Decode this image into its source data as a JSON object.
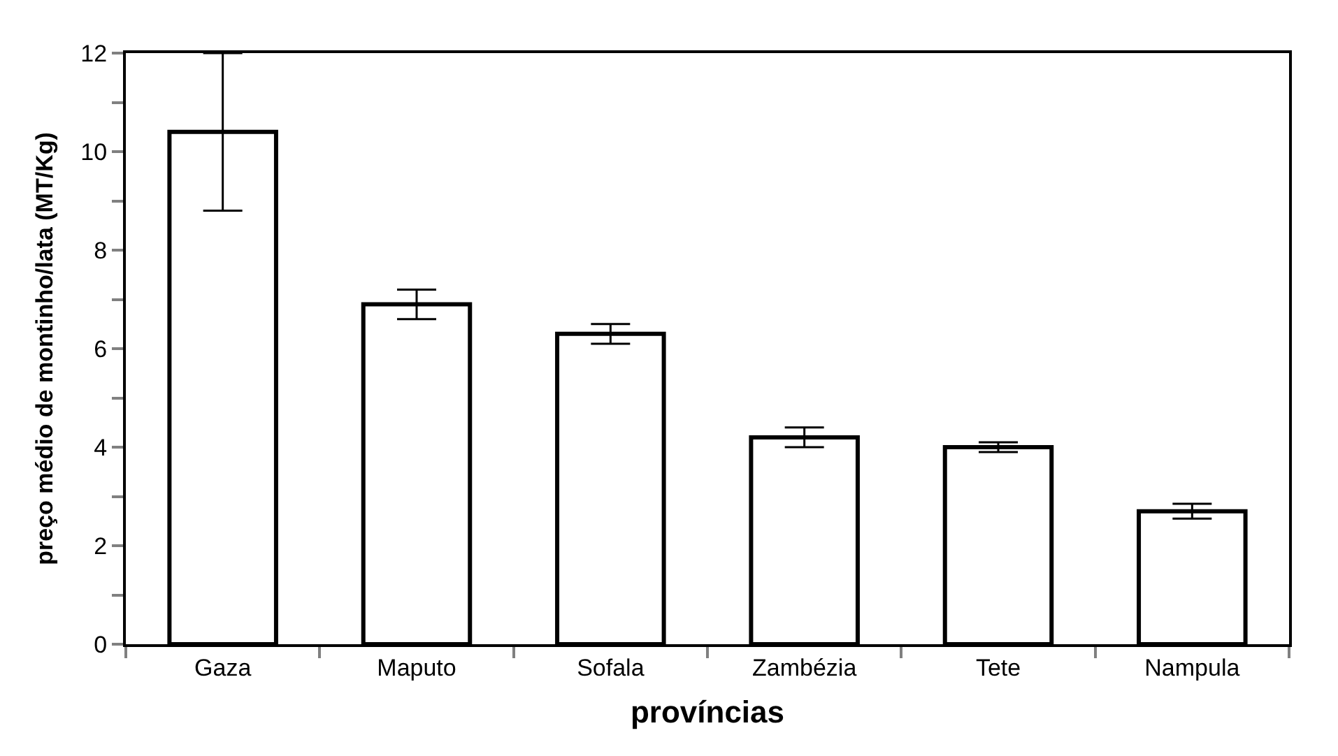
{
  "chart_data": {
    "type": "bar",
    "xlabel": "províncias",
    "ylabel": "preço médio de montinho/lata (MT/Kg)",
    "categories": [
      "Gaza",
      "Maputo",
      "Sofala",
      "Zambézia",
      "Tete",
      "Nampula"
    ],
    "values": [
      10.4,
      6.9,
      6.3,
      4.2,
      4.0,
      2.7
    ],
    "errors": [
      1.6,
      0.3,
      0.2,
      0.2,
      0.1,
      0.15
    ],
    "color": "#ffffff",
    "ylim": [
      0,
      12
    ],
    "yticks": [
      0,
      {
        "value": 1,
        "label": null
      },
      2,
      {
        "value": 3,
        "label": null
      },
      4,
      {
        "value": 5,
        "label": null
      },
      6,
      {
        "value": 7,
        "label": null
      },
      8,
      {
        "value": 9,
        "label": null
      },
      10,
      {
        "value": 11,
        "label": null
      },
      12
    ],
    "legend": false
  }
}
